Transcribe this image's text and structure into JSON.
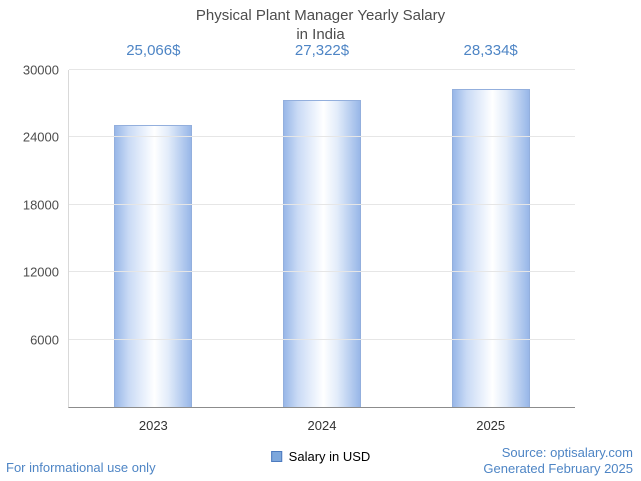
{
  "chart_data": {
    "type": "bar",
    "title": "Physical Plant Manager Yearly Salary\nin India",
    "categories": [
      "2023",
      "2024",
      "2025"
    ],
    "values": [
      25066,
      27322,
      28334
    ],
    "value_labels": [
      "25,066$",
      "27,322$",
      "28,334$"
    ],
    "yticks": [
      6000,
      12000,
      18000,
      24000,
      30000
    ],
    "ylim": [
      0,
      30000
    ],
    "grid": true,
    "legend": {
      "label": "Salary in USD",
      "position": "bottom-center"
    },
    "colors": {
      "accent": "#4e85c5",
      "bar_edge": "#93afdd",
      "legend_fill": "#7da7dc",
      "legend_edge": "#4d7bbf",
      "title_text": "#4d4d4d"
    }
  },
  "footer": {
    "left": "For informational use only",
    "source": "Source: optisalary.com",
    "generated": "Generated February 2025"
  }
}
